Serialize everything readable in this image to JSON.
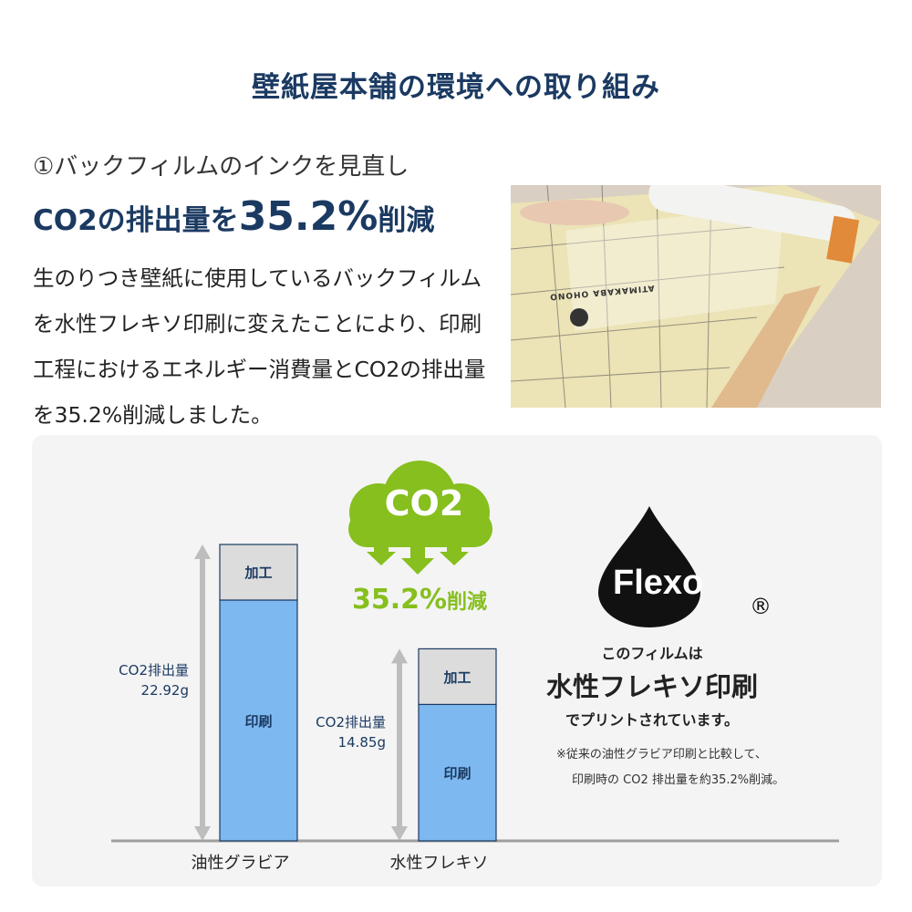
{
  "title": "壁紙屋本舗の環境への取り組み",
  "section": {
    "subtitle": "①バックフィルムのインクを見直し",
    "headline_prefix": "CO2の排出量を",
    "headline_value": "35.2%",
    "headline_suffix": "削減",
    "body": "生のりつき壁紙に使用しているバックフィルムを水性フレキソ印刷に変えたことにより、印刷工程におけるエネルギー消費量とCO2の排出量を35.2%削減しました。"
  },
  "photo": {
    "roll_label": "ATIMAKABA OHONO"
  },
  "badge": {
    "co2": "CO2",
    "reduction": "35.2%",
    "reduction_suffix": "削減",
    "color": "#86bf1e"
  },
  "flexo": {
    "logo_text": "Flexo",
    "registered": "®",
    "line1": "このフィルムは",
    "line2": "水性フレキソ印刷",
    "line3": "でプリントされています。",
    "note1": "※従来の油性グラビア印刷と比較して、",
    "note2": "印刷時の CO2 排出量を約35.2%削減。"
  },
  "chart_data": {
    "type": "bar",
    "stacked": true,
    "categories": [
      "油性グラビア",
      "水性フレキソ"
    ],
    "totals_label": "CO2排出量",
    "totals": [
      "22.92g",
      "14.85g"
    ],
    "series": [
      {
        "name": "印刷",
        "values": [
          18.62,
          10.55
        ],
        "color": "#7db8f0"
      },
      {
        "name": "加工",
        "values": [
          4.3,
          4.3
        ],
        "color": "#dcdcdc"
      }
    ],
    "ylim": [
      0,
      22.92
    ],
    "grid": false
  }
}
